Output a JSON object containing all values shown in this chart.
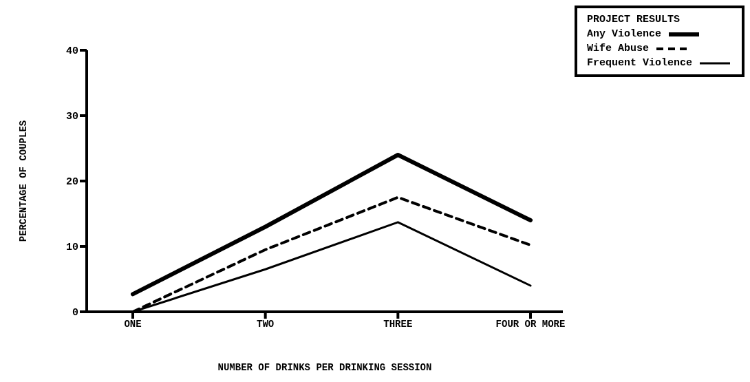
{
  "chart_data": {
    "type": "line",
    "xlabel": "NUMBER OF DRINKS PER DRINKING SESSION",
    "ylabel": "PERCENTAGE OF COUPLES",
    "legend_title": "PROJECT RESULTS",
    "categories": [
      "ONE",
      "TWO",
      "THREE",
      "FOUR OR MORE"
    ],
    "ylim": [
      0,
      40
    ],
    "yticks": [
      0,
      10,
      20,
      30,
      40
    ],
    "grid": false,
    "legend": "top right",
    "marker": "none",
    "series": [
      {
        "name": "Any Violence",
        "color": "#000000",
        "line_style": "solid",
        "values": [
          2.7,
          13,
          24,
          14
        ]
      },
      {
        "name": "Wife Abuse",
        "color": "#000000",
        "line_style": "dashed",
        "values": [
          0,
          9.5,
          17.5,
          10.2
        ]
      },
      {
        "name": "Frequent Violence",
        "color": "#000000",
        "line_style": "solid",
        "values": [
          0,
          6.5,
          13.7,
          4
        ]
      }
    ]
  }
}
